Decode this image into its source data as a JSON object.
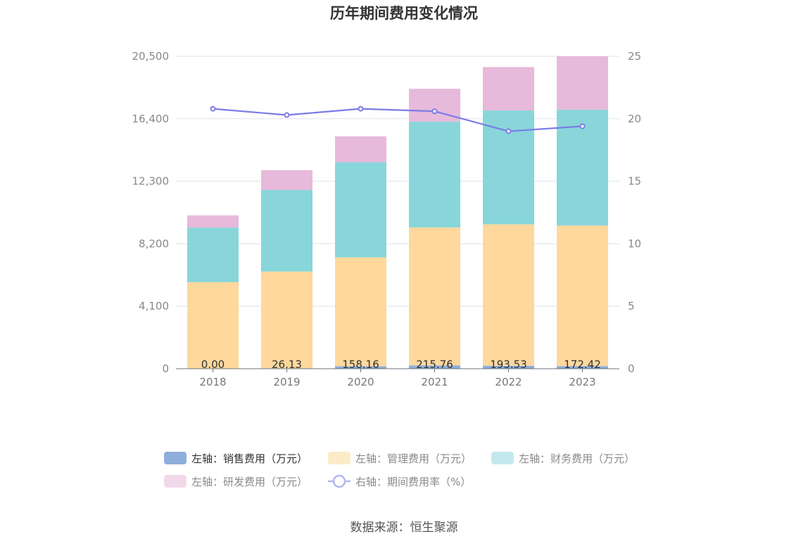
{
  "chart_data": {
    "type": "bar",
    "title": "历年期间费用变化情况",
    "categories": [
      "2018",
      "2019",
      "2020",
      "2021",
      "2022",
      "2023"
    ],
    "stacked": true,
    "y_left": {
      "ticks": [
        "0",
        "4,100",
        "8,200",
        "12,300",
        "16,400",
        "20,500"
      ],
      "ylim": [
        0,
        20500
      ]
    },
    "y_right": {
      "ticks": [
        "0",
        "5",
        "10",
        "15",
        "20",
        "25"
      ],
      "ylim": [
        0,
        25
      ]
    },
    "series": [
      {
        "name": "左轴：销售费用（万元）",
        "type": "bar",
        "axis": "left",
        "color": "#8eaedc",
        "values": [
          0.0,
          26.13,
          158.16,
          215.76,
          193.53,
          172.42
        ],
        "labels": [
          "0.00",
          "26.13",
          "158.16",
          "215.76",
          "193.53",
          "172.42"
        ]
      },
      {
        "name": "左轴：管理费用（万元）",
        "type": "bar",
        "axis": "left",
        "color": "#fed89c",
        "values": [
          5680,
          6350,
          7150,
          9050,
          9280,
          9220
        ]
      },
      {
        "name": "左轴：财务费用（万元）",
        "type": "bar",
        "axis": "left",
        "color": "#88d6da",
        "values": [
          3580,
          5350,
          6240,
          6950,
          7470,
          7610
        ]
      },
      {
        "name": "左轴：研发费用（万元）",
        "type": "bar",
        "axis": "left",
        "color": "#e7b9da",
        "values": [
          800,
          1300,
          1700,
          2150,
          2850,
          3500
        ]
      },
      {
        "name": "右轴：期间费用率（%）",
        "type": "line",
        "axis": "right",
        "color": "#7b7be6",
        "values": [
          20.8,
          20.3,
          20.8,
          20.6,
          19.0,
          19.4
        ]
      }
    ],
    "legend_position": "bottom",
    "grid": true
  },
  "source_text": "数据来源：恒生聚源"
}
